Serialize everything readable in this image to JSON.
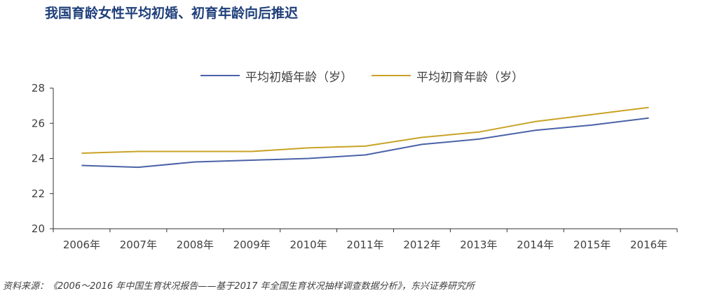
{
  "header": {
    "title": "我国育龄女性平均初婚、初育年龄向后推迟"
  },
  "footer": {
    "source": "资料来源：《2006～2016 年中国生育状况报告——基于2017 年全国生育状况抽样调查数据分析》，东兴证券研究所"
  },
  "colors": {
    "marriage": "#4a62a8",
    "birth": "#c9a326",
    "title": "#1f3f7a"
  },
  "chart_data": {
    "type": "line",
    "title": "我国育龄女性平均初婚、初育年龄向后推迟",
    "xlabel": "",
    "ylabel": "",
    "ylim": [
      20,
      28
    ],
    "yticks": [
      20,
      22,
      24,
      26,
      28
    ],
    "grid": false,
    "legend": "top",
    "categories": [
      "2006年",
      "2007年",
      "2008年",
      "2009年",
      "2010年",
      "2011年",
      "2012年",
      "2013年",
      "2014年",
      "2015年",
      "2016年"
    ],
    "series": [
      {
        "name": "平均初婚年龄（岁）",
        "color": "#4a62a8",
        "values": [
          23.6,
          23.5,
          23.8,
          23.9,
          24.0,
          24.2,
          24.8,
          25.1,
          25.6,
          25.9,
          26.3
        ]
      },
      {
        "name": "平均初育年龄（岁）",
        "color": "#c9a326",
        "values": [
          24.3,
          24.4,
          24.4,
          24.4,
          24.6,
          24.7,
          25.2,
          25.5,
          26.1,
          26.5,
          26.9
        ]
      }
    ]
  }
}
